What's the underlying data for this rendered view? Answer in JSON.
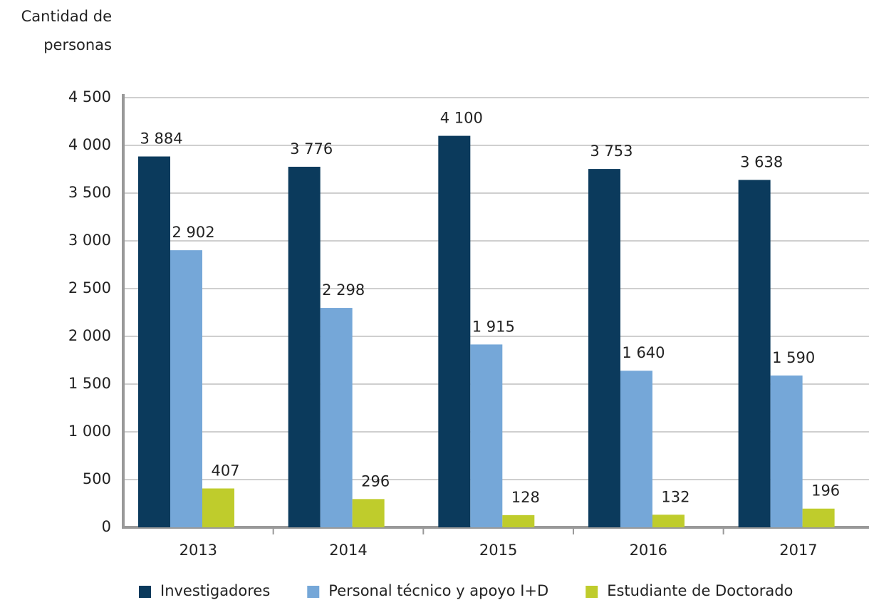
{
  "chart_data": {
    "type": "bar",
    "ylabel_lines": [
      "Cantidad de",
      "personas"
    ],
    "categories": [
      "2013",
      "2014",
      "2015",
      "2016",
      "2017"
    ],
    "series": [
      {
        "name": "Investigadores",
        "color": "#0b3a5c",
        "values": [
          3884,
          3776,
          4100,
          3753,
          3638
        ],
        "value_labels": [
          "3 884",
          "3 776",
          "4 100",
          "3 753",
          "3 638"
        ]
      },
      {
        "name": "Personal técnico y apoyo I+D",
        "color": "#75a7d8",
        "values": [
          2902,
          2298,
          1915,
          1640,
          1590
        ],
        "value_labels": [
          "2 902",
          "2 298",
          "1 915",
          "1 640",
          "1 590"
        ]
      },
      {
        "name": "Estudiante de Doctorado",
        "color": "#bfcc2c",
        "values": [
          407,
          296,
          128,
          132,
          196
        ],
        "value_labels": [
          "407",
          "296",
          "128",
          "132",
          "196"
        ]
      }
    ],
    "ylim": [
      0,
      4500
    ],
    "yticks": [
      0,
      500,
      {
        "value": 1000,
        "label": "1 000"
      },
      {
        "value": 1500,
        "label": "1 500"
      },
      {
        "value": 2000,
        "label": "2 000"
      },
      {
        "value": 2500,
        "label": "2 500"
      },
      {
        "value": 3000,
        "label": "3 000"
      },
      {
        "value": 3500,
        "label": "3 500"
      },
      {
        "value": 4000,
        "label": "4 000"
      },
      {
        "value": 4500,
        "label": "4 500"
      }
    ],
    "grid": true,
    "legend": "bottom"
  }
}
